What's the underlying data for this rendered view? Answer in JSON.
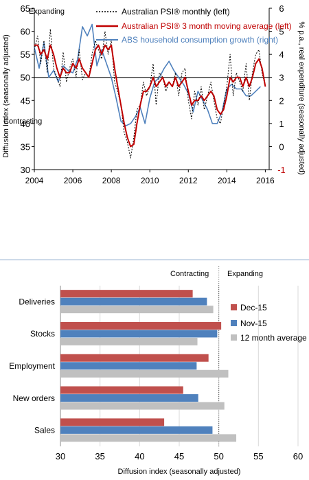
{
  "chart_data": [
    {
      "type": "line",
      "title": "",
      "xlabel": "",
      "ylabel": "Diffusion Index (seasonally adjusted)",
      "y2label": "% p.a., real expenditure (seasonally adjusted)",
      "xlim": [
        2004,
        2016.2
      ],
      "ylim": [
        30,
        65
      ],
      "y2lim": [
        -1,
        6
      ],
      "x_ticks": [
        "2004",
        "2006",
        "2008",
        "2010",
        "2012",
        "2014",
        "2016"
      ],
      "y_ticks": [
        "30",
        "35",
        "40",
        "45",
        "50",
        "55",
        "60",
        "65"
      ],
      "y2_ticks": [
        "-1",
        "0",
        "1",
        "2",
        "3",
        "4",
        "5",
        "6"
      ],
      "grid": false,
      "legend_position": "top-center",
      "annotations": {
        "expanding": "Expanding",
        "contracting": "Contracting"
      },
      "reference_line": 50,
      "colors": {
        "monthly": "#000000",
        "moving_average": "#c00000",
        "consumption": "#4f81bd",
        "right_axis": "#c00000"
      },
      "series": [
        {
          "name": "Australian PSI® monthly (left)",
          "axis": "left",
          "style": "dashed",
          "x": [
            2004.0,
            2004.17,
            2004.33,
            2004.5,
            2004.67,
            2004.83,
            2005.0,
            2005.17,
            2005.33,
            2005.5,
            2005.67,
            2005.83,
            2006.0,
            2006.17,
            2006.33,
            2006.5,
            2006.67,
            2006.83,
            2007.0,
            2007.17,
            2007.33,
            2007.5,
            2007.67,
            2007.83,
            2008.0,
            2008.17,
            2008.33,
            2008.5,
            2008.67,
            2008.83,
            2009.0,
            2009.17,
            2009.33,
            2009.5,
            2009.67,
            2009.83,
            2010.0,
            2010.17,
            2010.33,
            2010.5,
            2010.67,
            2010.83,
            2011.0,
            2011.17,
            2011.33,
            2011.5,
            2011.67,
            2011.83,
            2012.0,
            2012.17,
            2012.33,
            2012.5,
            2012.67,
            2012.83,
            2013.0,
            2013.17,
            2013.33,
            2013.5,
            2013.67,
            2013.83,
            2014.0,
            2014.17,
            2014.33,
            2014.5,
            2014.67,
            2014.83,
            2015.0,
            2015.17,
            2015.33,
            2015.5,
            2015.67,
            2015.83,
            2016.0
          ],
          "values": [
            56,
            59,
            53,
            58,
            51,
            60.5,
            52,
            50,
            48,
            55.5,
            49,
            52,
            54,
            50,
            56,
            49.5,
            51,
            50,
            55,
            58,
            56,
            54,
            60,
            55,
            58,
            49,
            47,
            44,
            38,
            36,
            32.5,
            37,
            43,
            44,
            49,
            46,
            48,
            53,
            44,
            51,
            50,
            47,
            49,
            48,
            51,
            46,
            51,
            52,
            45,
            41,
            47,
            44,
            48,
            43,
            46,
            49,
            45,
            41,
            40,
            44,
            48,
            55,
            46,
            51,
            49,
            47,
            53,
            45,
            51,
            55,
            56,
            51,
            48
          ]
        },
        {
          "name": "Australian PSI® 3 month moving average (left)",
          "axis": "left",
          "style": "solid",
          "x": [
            2004.0,
            2004.17,
            2004.33,
            2004.5,
            2004.67,
            2004.83,
            2005.0,
            2005.17,
            2005.33,
            2005.5,
            2005.67,
            2005.83,
            2006.0,
            2006.17,
            2006.33,
            2006.5,
            2006.67,
            2006.83,
            2007.0,
            2007.17,
            2007.33,
            2007.5,
            2007.67,
            2007.83,
            2008.0,
            2008.17,
            2008.33,
            2008.5,
            2008.67,
            2008.83,
            2009.0,
            2009.17,
            2009.33,
            2009.5,
            2009.67,
            2009.83,
            2010.0,
            2010.17,
            2010.33,
            2010.5,
            2010.67,
            2010.83,
            2011.0,
            2011.17,
            2011.33,
            2011.5,
            2011.67,
            2011.83,
            2012.0,
            2012.17,
            2012.33,
            2012.5,
            2012.67,
            2012.83,
            2013.0,
            2013.17,
            2013.33,
            2013.5,
            2013.67,
            2013.83,
            2014.0,
            2014.17,
            2014.33,
            2014.5,
            2014.67,
            2014.83,
            2015.0,
            2015.17,
            2015.33,
            2015.5,
            2015.67,
            2015.83,
            2016.0
          ],
          "values": [
            57,
            57,
            55,
            56,
            54,
            57,
            55,
            52,
            50,
            52,
            51,
            51,
            53,
            52,
            54,
            52,
            51,
            50,
            53,
            56,
            57,
            55,
            57,
            56,
            57,
            52,
            48,
            44,
            40,
            37,
            35,
            35.5,
            40,
            44,
            47,
            47,
            48,
            50,
            48,
            49,
            50,
            48,
            49,
            48,
            50,
            48,
            49,
            50,
            47,
            44,
            45,
            45,
            46,
            45,
            46,
            47,
            46,
            43,
            42,
            43,
            46,
            50,
            49,
            50,
            50,
            48,
            50,
            48,
            50,
            53,
            54,
            52,
            48
          ]
        },
        {
          "name": "ABS household consumption growth (right)",
          "axis": "right",
          "style": "solid",
          "x": [
            2004.0,
            2004.25,
            2004.5,
            2004.75,
            2005.0,
            2005.25,
            2005.5,
            2005.75,
            2006.0,
            2006.25,
            2006.5,
            2006.75,
            2007.0,
            2007.25,
            2007.5,
            2007.75,
            2008.0,
            2008.25,
            2008.5,
            2008.75,
            2009.0,
            2009.25,
            2009.5,
            2009.75,
            2010.0,
            2010.25,
            2010.5,
            2010.75,
            2011.0,
            2011.25,
            2011.5,
            2011.75,
            2012.0,
            2012.25,
            2012.5,
            2012.75,
            2013.0,
            2013.25,
            2013.5,
            2013.75,
            2014.0,
            2014.25,
            2014.5,
            2014.75,
            2015.0,
            2015.25,
            2015.5,
            2015.75
          ],
          "values": [
            4.3,
            3.4,
            4.5,
            3.0,
            3.3,
            2.8,
            3.5,
            3.3,
            3.2,
            3.8,
            5.2,
            4.8,
            5.3,
            3.5,
            4.2,
            3.6,
            3.0,
            2.1,
            1.1,
            0.9,
            1.0,
            1.3,
            1.7,
            1.0,
            2.1,
            2.8,
            3.0,
            3.4,
            3.7,
            3.3,
            3.0,
            2.7,
            2.3,
            1.5,
            2.4,
            2.0,
            1.6,
            1.0,
            1.0,
            1.5,
            2.5,
            2.7,
            2.5,
            2.5,
            2.2,
            2.2,
            2.4,
            2.6
          ]
        }
      ]
    },
    {
      "type": "bar",
      "orientation": "horizontal",
      "title": "",
      "xlabel": "Diffusion index (seasonally adjusted)",
      "ylabel": "",
      "xlim": [
        30,
        60
      ],
      "x_ticks": [
        "30",
        "35",
        "40",
        "45",
        "50",
        "55",
        "60"
      ],
      "grid": true,
      "legend_position": "right",
      "annotations": {
        "contracting": "Contracting",
        "expanding": "Expanding"
      },
      "reference_line": 50,
      "categories": [
        "Deliveries",
        "Stocks",
        "Employment",
        "New orders",
        "Sales"
      ],
      "series": [
        {
          "name": "Dec-15",
          "color": "#c0504d",
          "values": [
            46.7,
            50.3,
            48.7,
            45.5,
            43.1
          ]
        },
        {
          "name": "Nov-15",
          "color": "#4f81bd",
          "values": [
            48.5,
            49.8,
            47.2,
            47.4,
            49.2
          ]
        },
        {
          "name": "12 month average",
          "color": "#c0c0c0",
          "values": [
            49.3,
            47.3,
            51.2,
            50.7,
            52.2
          ]
        }
      ]
    }
  ]
}
